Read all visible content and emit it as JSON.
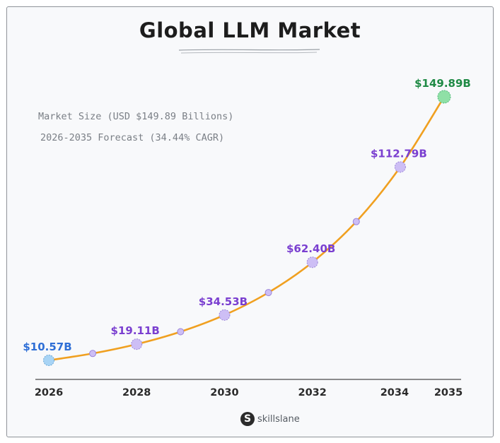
{
  "chart_data": {
    "type": "line",
    "title": "Global LLM Market",
    "subtitle_lines": [
      "Market Size (USD $149.89 Billions)",
      "2026-2035 Forecast (34.44% CAGR)"
    ],
    "x": [
      2026,
      2027,
      2028,
      2029,
      2030,
      2031,
      2032,
      2033,
      2034,
      2035
    ],
    "values": [
      10.57,
      14.2,
      19.11,
      25.7,
      34.53,
      46.4,
      62.4,
      83.9,
      112.79,
      149.89
    ],
    "x_tick_labels": [
      "2026",
      "2028",
      "2030",
      "2032",
      "2034",
      "2035"
    ],
    "data_labels": [
      {
        "year": 2026,
        "text": "$10.57B"
      },
      {
        "year": 2028,
        "text": "$19.11B"
      },
      {
        "year": 2030,
        "text": "$34.53B"
      },
      {
        "year": 2032,
        "text": "$62.40B"
      },
      {
        "year": 2034,
        "text": "$112.79B"
      },
      {
        "year": 2035,
        "text": "$149.89B"
      }
    ],
    "grid": false,
    "legend": "none",
    "colors": {
      "line": "#f0a020",
      "start_point": "#a8d4f5",
      "end_point": "#8fe0a6",
      "mid_point": "#cdbef5",
      "start_label": "#2f6fd6",
      "mid_label": "#7a3fd0",
      "end_label": "#1f8a45"
    }
  },
  "branding": {
    "logo_icon": "skillslane-s-icon",
    "logo_mark": "S",
    "logo_text": "skillslane"
  }
}
